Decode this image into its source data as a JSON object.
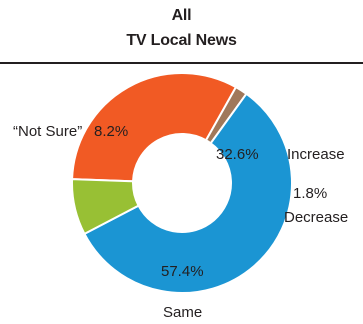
{
  "header": {
    "title_line1": "All",
    "title_line2": "TV Local News"
  },
  "colors": {
    "Increase": "#f15a24",
    "Decrease": "#a0785a",
    "Same": "#1b95d3",
    "Not Sure": "#98c034"
  },
  "chart_data": {
    "type": "pie",
    "donut": true,
    "title": "All TV Local News",
    "categories": [
      "Increase",
      "Decrease",
      "Same",
      "“Not Sure”"
    ],
    "values": [
      32.6,
      1.8,
      57.4,
      8.2
    ],
    "value_labels": [
      "32.6%",
      "1.8%",
      "57.4%",
      "8.2%"
    ],
    "unit": "%",
    "legend": "none",
    "labels_placement": "outside-slices"
  }
}
